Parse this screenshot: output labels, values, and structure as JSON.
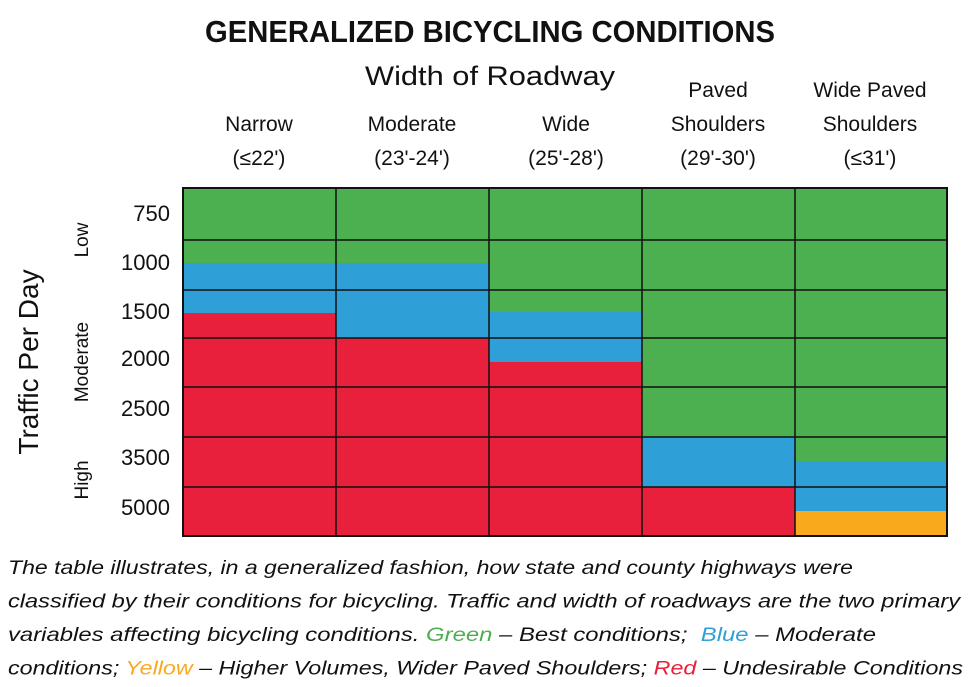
{
  "title": "GENERALIZED BICYCLING CONDITIONS",
  "subtitle": "Width of Roadway",
  "columns": [
    {
      "lines": [
        "Narrow",
        "(≤22')"
      ]
    },
    {
      "lines": [
        "Moderate",
        "(23'-24')"
      ]
    },
    {
      "lines": [
        "Wide",
        "(25'-28')"
      ]
    },
    {
      "lines": [
        "Paved",
        "Shoulders",
        "(29'-30')"
      ]
    },
    {
      "lines": [
        "Wide Paved",
        "Shoulders",
        "(≤31')"
      ]
    }
  ],
  "y_axis_title": "Traffic Per Day",
  "row_groups": [
    "Low",
    "Moderate",
    "High"
  ],
  "rows": [
    "750",
    "1000",
    "1500",
    "2000",
    "2500",
    "3500",
    "5000"
  ],
  "caption": {
    "lines": [
      [
        "The table illustrates, in a generalized fashion, how state and county highways were"
      ],
      [
        "classified by their conditions for bicycling. Traffic and width of roadways are the two primary"
      ],
      [
        "variables affecting bicycling conditions. ",
        "Green",
        " – Best conditions;  ",
        "Blue",
        " – Moderate"
      ],
      [
        "conditions; ",
        "Yellow",
        " – Higher Volumes, Wider Paved Shoulders; ",
        "Red",
        " – Undesirable Conditions"
      ]
    ]
  }
}
